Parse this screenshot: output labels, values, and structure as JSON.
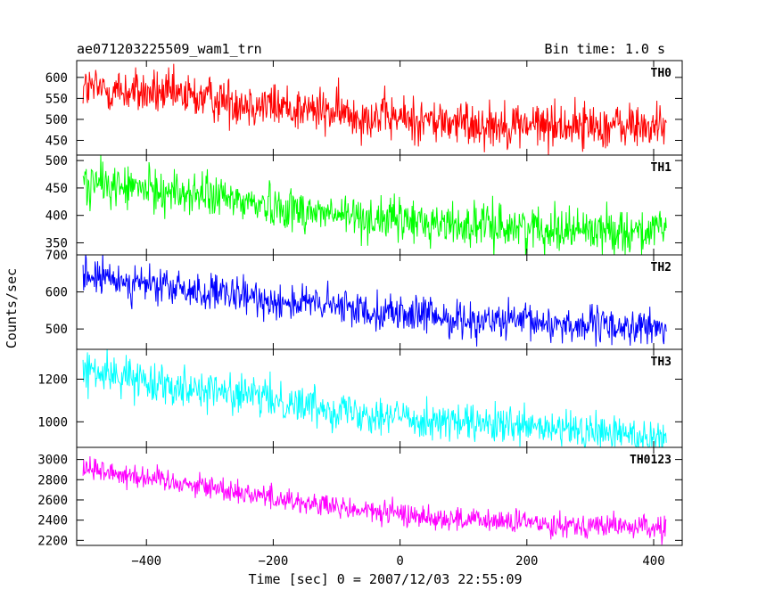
{
  "header": {
    "title": "ae071203225509_wam1_trn",
    "bin_time": "Bin time: 1.0 s"
  },
  "chart_data": {
    "type": "line",
    "xlabel": "Time [sec] 0 = 2007/12/03 22:55:09",
    "ylabel": "Counts/sec",
    "xlim": [
      -510,
      445
    ],
    "xticks": [
      -400,
      -200,
      0,
      200,
      400
    ],
    "x_sampling": {
      "start": -500,
      "end": 420,
      "step": 1
    },
    "panels": [
      {
        "name": "TH0",
        "color": "#ff0000",
        "ylim": [
          415,
          640
        ],
        "yticks": [
          450,
          500,
          550,
          600
        ],
        "trend": [
          [
            -500,
            575
          ],
          [
            -300,
            550
          ],
          [
            -100,
            515
          ],
          [
            100,
            490
          ],
          [
            420,
            482
          ]
        ],
        "noise": 28
      },
      {
        "name": "TH1",
        "color": "#00ff00",
        "ylim": [
          328,
          510
        ],
        "yticks": [
          350,
          400,
          450,
          500
        ],
        "trend": [
          [
            -500,
            460
          ],
          [
            -300,
            435
          ],
          [
            -100,
            400
          ],
          [
            100,
            382
          ],
          [
            420,
            370
          ]
        ],
        "noise": 20
      },
      {
        "name": "TH2",
        "color": "#0000ff",
        "ylim": [
          445,
          700
        ],
        "yticks": [
          500,
          600,
          700
        ],
        "trend": [
          [
            -500,
            645
          ],
          [
            -300,
            595
          ],
          [
            -100,
            560
          ],
          [
            100,
            525
          ],
          [
            420,
            500
          ]
        ],
        "noise": 25
      },
      {
        "name": "TH3",
        "color": "#00ffff",
        "ylim": [
          880,
          1340
        ],
        "yticks": [
          1000,
          1200
        ],
        "trend": [
          [
            -500,
            1240
          ],
          [
            -300,
            1150
          ],
          [
            -100,
            1060
          ],
          [
            100,
            990
          ],
          [
            420,
            930
          ]
        ],
        "noise": 45
      },
      {
        "name": "TH0123",
        "color": "#ff00ff",
        "ylim": [
          2150,
          3120
        ],
        "yticks": [
          2200,
          2400,
          2600,
          2800,
          3000
        ],
        "trend": [
          [
            -500,
            2920
          ],
          [
            -300,
            2730
          ],
          [
            -100,
            2520
          ],
          [
            100,
            2400
          ],
          [
            420,
            2320
          ]
        ],
        "noise": 60
      }
    ]
  }
}
